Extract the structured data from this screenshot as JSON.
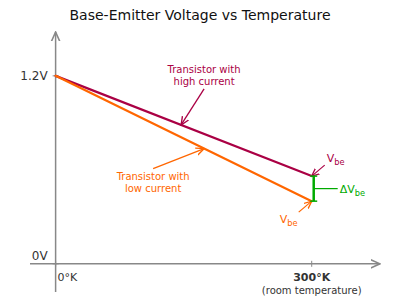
{
  "chart_data": {
    "type": "line",
    "title": "Base-Emitter Voltage vs Temperature",
    "x": [
      0,
      300
    ],
    "xlim": [
      -30,
      380
    ],
    "ylim": [
      -0.18,
      1.48
    ],
    "xticks": [
      {
        "value": 0,
        "label": "0°K"
      },
      {
        "value": 300,
        "label": "300°K"
      }
    ],
    "yticks": [
      {
        "value": 0,
        "label": "0V"
      },
      {
        "value": 1.2,
        "label": "1.2V"
      }
    ],
    "xlabel": "(room temperature)",
    "series": [
      {
        "color": "#aa0044",
        "values": [
          1.2,
          0.56
        ],
        "annotation": "Transistor with\nhigh current",
        "end_label": "Vbe"
      },
      {
        "color": "#ff6600",
        "values": [
          1.2,
          0.4
        ],
        "annotation": "Transistor with\nlow current",
        "end_label": "Vbe"
      }
    ],
    "delta": {
      "label": "ΔVbe",
      "color": "#00aa00"
    },
    "grid": false
  }
}
